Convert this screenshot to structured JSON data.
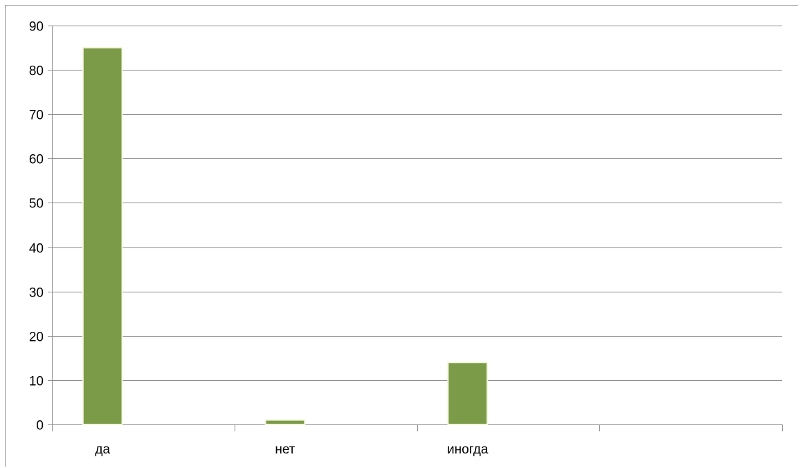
{
  "chart_data": {
    "type": "bar",
    "categories": [
      "да",
      "нет",
      "иногда",
      ""
    ],
    "values": [
      85,
      1,
      14,
      null
    ],
    "title": "",
    "xlabel": "",
    "ylabel": "",
    "ylim": [
      0,
      90
    ],
    "yticks": [
      0,
      10,
      20,
      30,
      40,
      50,
      60,
      70,
      80,
      90
    ],
    "ytick_labels": [
      "0",
      "10",
      "20",
      "30",
      "40",
      "50",
      "60",
      "70",
      "80",
      "90"
    ],
    "grid": true,
    "legend": "none",
    "colors": {
      "bar": "#7b9b48",
      "bar_edge": "#f5f5dc",
      "grid": "#8c8c8c",
      "text": "#000000"
    }
  }
}
